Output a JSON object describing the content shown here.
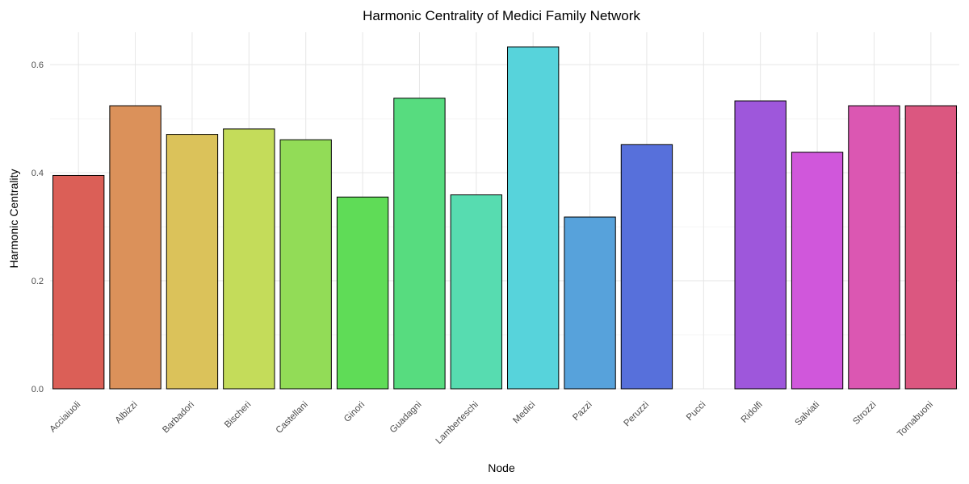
{
  "chart_data": {
    "type": "bar",
    "title": "Harmonic Centrality of Medici Family Network",
    "xlabel": "Node",
    "ylabel": "Harmonic Centrality",
    "ylim": [
      0,
      0.66
    ],
    "yticks": [
      0.0,
      0.2,
      0.4,
      0.6
    ],
    "ytick_labels": [
      "0.0",
      "0.2",
      "0.4",
      "0.6"
    ],
    "grid": true,
    "legend": "none",
    "categories": [
      "Acciaiuoli",
      "Albizzi",
      "Barbadori",
      "Bischeri",
      "Castellani",
      "Ginori",
      "Guadagni",
      "Lamberteschi",
      "Medici",
      "Pazzi",
      "Peruzzi",
      "Pucci",
      "Ridolfi",
      "Salviati",
      "Strozzi",
      "Tornabuoni"
    ],
    "values": [
      0.395,
      0.524,
      0.471,
      0.481,
      0.461,
      0.355,
      0.538,
      0.359,
      0.633,
      0.318,
      0.452,
      0.0,
      0.533,
      0.438,
      0.524,
      0.524
    ],
    "colors": [
      "#db5f57",
      "#db915a",
      "#dbc25a",
      "#c4dc5a",
      "#92dc57",
      "#5fdc57",
      "#57dc7f",
      "#57dcb0",
      "#57d3db",
      "#57a2db",
      "#5770db",
      "#6c57db",
      "#9e57db",
      "#d057db",
      "#db57b2",
      "#db5780"
    ]
  }
}
